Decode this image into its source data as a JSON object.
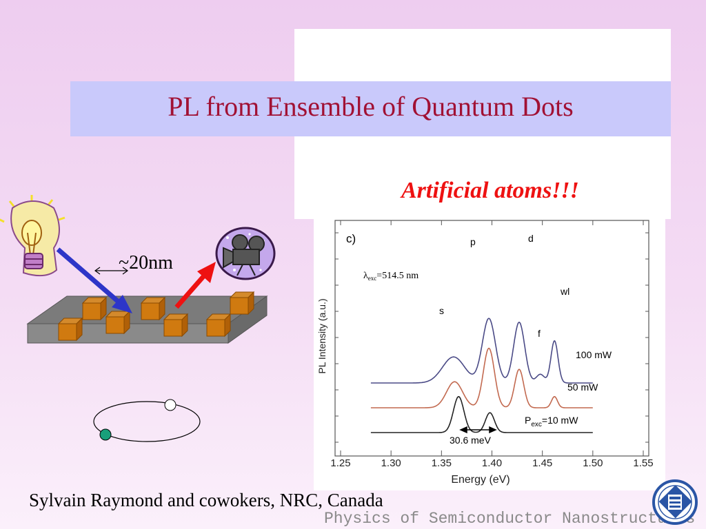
{
  "slide": {
    "title": "PL from Ensemble of Quantum Dots",
    "subtitle": "Artificial atoms!!!",
    "credit": "Sylvain Raymond and cowokers, NRC, Canada",
    "footer_brand": "Physics of Semiconductor Nanostructures",
    "scale_label": "~20nm",
    "colors": {
      "title": "#a11134",
      "subtitle": "#ee1111",
      "title_bar": "#c9c9fb"
    },
    "icons": [
      "lightbulb-icon",
      "film-camera-icon",
      "university-seal-icon"
    ]
  },
  "chart_data": {
    "type": "line",
    "panel_label": "c)",
    "xlabel": "Energy (eV)",
    "ylabel": "PL Intensity (a.u.)",
    "xlim": [
      1.25,
      1.55
    ],
    "x_ticks": [
      "1.25",
      "1.30",
      "1.35",
      "1.40",
      "1.45",
      "1.50",
      "1.55"
    ],
    "annotation_lambda": "λexc=514.5 nm",
    "lambda_symbol": "λ",
    "lambda_sub": "exc",
    "lambda_value": "=514.5 nm",
    "peak_labels": [
      "s",
      "p",
      "d",
      "wl",
      "f"
    ],
    "splitting_label": "30.6 meV",
    "series": [
      {
        "name": "100 mW",
        "color": "#4a4a86",
        "offset": 2.0,
        "peaks": [
          {
            "center": 1.362,
            "amp": 1.05,
            "width": 0.011
          },
          {
            "center": 1.397,
            "amp": 2.6,
            "width": 0.0065
          },
          {
            "center": 1.427,
            "amp": 2.45,
            "width": 0.0055
          },
          {
            "center": 1.448,
            "amp": 0.35,
            "width": 0.004
          },
          {
            "center": 1.462,
            "amp": 1.7,
            "width": 0.0035
          }
        ]
      },
      {
        "name": "50 mW",
        "color": "#c2694f",
        "offset": 1.0,
        "peaks": [
          {
            "center": 1.363,
            "amp": 1.05,
            "width": 0.008
          },
          {
            "center": 1.397,
            "amp": 2.4,
            "width": 0.0055
          },
          {
            "center": 1.427,
            "amp": 1.55,
            "width": 0.0045
          },
          {
            "center": 1.462,
            "amp": 0.45,
            "width": 0.003
          }
        ]
      },
      {
        "name": "P",
        "name_sub": "exc",
        "name_suffix": "=10 mW",
        "color": "#222222",
        "offset": 0.0,
        "peaks": [
          {
            "center": 1.367,
            "amp": 1.45,
            "width": 0.0052
          },
          {
            "center": 1.398,
            "amp": 0.8,
            "width": 0.0045
          }
        ]
      }
    ]
  }
}
